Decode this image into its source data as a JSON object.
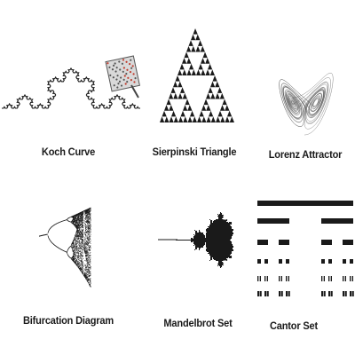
{
  "figures": [
    {
      "id": "koch",
      "caption": "Koch Curve",
      "icon": "koch-curve-icon"
    },
    {
      "id": "sierpinski",
      "caption": "Sierpinski Triangle",
      "icon": "sierpinski-triangle-icon"
    },
    {
      "id": "lorenz",
      "caption": "Lorenz Attractor",
      "icon": "lorenz-attractor-icon"
    },
    {
      "id": "bifurcation",
      "caption": "Bifurcation Diagram",
      "icon": "bifurcation-diagram-icon"
    },
    {
      "id": "mandelbrot",
      "caption": "Mandelbrot Set",
      "icon": "mandelbrot-set-icon"
    },
    {
      "id": "cantor",
      "caption": "Cantor Set",
      "icon": "cantor-set-icon"
    }
  ],
  "colors": {
    "ink": "#1a1a1a",
    "paper": "#ffffff",
    "accent": "#c0392b"
  }
}
